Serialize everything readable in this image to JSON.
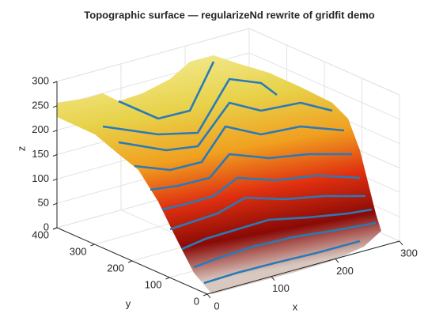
{
  "chart_data": {
    "type": "surface",
    "title": "Topographic surface — regularizeNd rewrite of gridfit demo",
    "xlabel": "x",
    "ylabel": "y",
    "zlabel": "z",
    "xlim": [
      0,
      300
    ],
    "ylim": [
      0,
      400
    ],
    "zlim": [
      0,
      300
    ],
    "xticks": [
      0,
      100,
      200,
      300
    ],
    "yticks": [
      0,
      100,
      200,
      300,
      400
    ],
    "zticks": [
      0,
      50,
      100,
      150,
      200,
      250,
      300
    ],
    "grid": true
  }
}
